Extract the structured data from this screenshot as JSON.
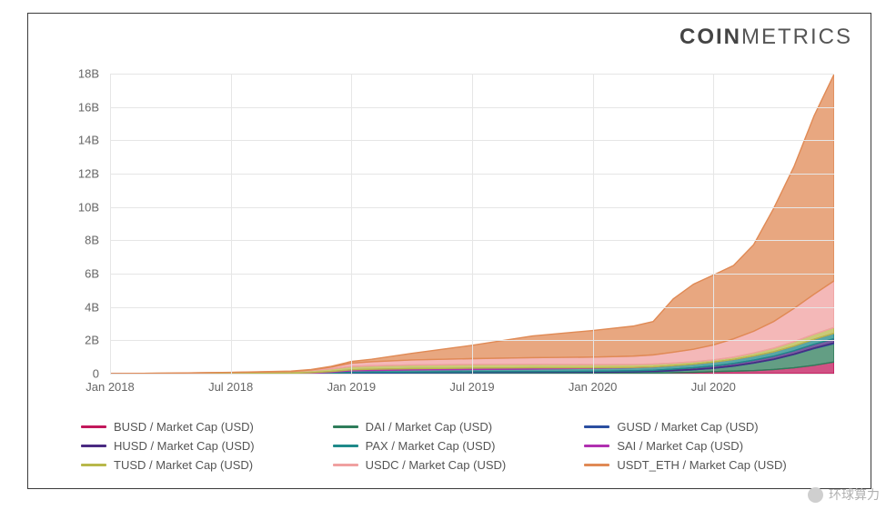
{
  "brand": {
    "bold": "COIN",
    "light": "METRICS"
  },
  "watermark": "环球算力",
  "chart": {
    "type": "area-stacked",
    "background_color": "#ffffff",
    "grid_color": "#e6e6e6",
    "axis_font_color": "#666666",
    "axis_font_size": 13,
    "ylim": [
      0,
      18
    ],
    "y_unit_suffix": "B",
    "yticks": [
      0,
      2,
      4,
      6,
      8,
      10,
      12,
      14,
      16,
      18
    ],
    "x_domain_months": [
      0,
      36
    ],
    "xticks": [
      {
        "m": 0,
        "label": "Jan 2018"
      },
      {
        "m": 6,
        "label": "Jul 2018"
      },
      {
        "m": 12,
        "label": "Jan 2019"
      },
      {
        "m": 18,
        "label": "Jul 2019"
      },
      {
        "m": 24,
        "label": "Jan 2020"
      },
      {
        "m": 30,
        "label": "Jul 2020"
      }
    ],
    "x_samples": [
      0,
      3,
      6,
      9,
      10,
      11,
      12,
      13,
      15,
      18,
      21,
      24,
      26,
      27,
      28,
      29,
      30,
      31,
      32,
      33,
      34,
      35,
      36
    ],
    "series": [
      {
        "key": "BUSD",
        "label": "BUSD / Market Cap (USD)",
        "color": "#c2185b",
        "values": [
          0,
          0,
          0,
          0,
          0,
          0,
          0,
          0,
          0,
          0,
          0,
          0,
          0.01,
          0.02,
          0.05,
          0.08,
          0.12,
          0.15,
          0.18,
          0.25,
          0.35,
          0.5,
          0.7
        ]
      },
      {
        "key": "DAI",
        "label": "DAI / Market Cap (USD)",
        "color": "#2f7d5b",
        "values": [
          0,
          0,
          0,
          0,
          0,
          0,
          0.02,
          0.03,
          0.05,
          0.06,
          0.07,
          0.08,
          0.09,
          0.1,
          0.12,
          0.15,
          0.2,
          0.3,
          0.45,
          0.6,
          0.8,
          1.0,
          1.1
        ]
      },
      {
        "key": "GUSD",
        "label": "GUSD / Market Cap (USD)",
        "color": "#2b4fa0",
        "values": [
          0,
          0,
          0,
          0,
          0.01,
          0.03,
          0.05,
          0.05,
          0.04,
          0.03,
          0.02,
          0.02,
          0.02,
          0.02,
          0.02,
          0.02,
          0.02,
          0.02,
          0.02,
          0.02,
          0.02,
          0.03,
          0.05
        ]
      },
      {
        "key": "HUSD",
        "label": "HUSD / Market Cap (USD)",
        "color": "#4a2a82",
        "values": [
          0,
          0,
          0,
          0,
          0,
          0,
          0,
          0,
          0.01,
          0.02,
          0.03,
          0.04,
          0.05,
          0.06,
          0.08,
          0.1,
          0.12,
          0.14,
          0.16,
          0.18,
          0.2,
          0.23,
          0.25
        ]
      },
      {
        "key": "PAX",
        "label": "PAX / Market Cap (USD)",
        "color": "#1f8a8a",
        "values": [
          0,
          0,
          0,
          0,
          0.01,
          0.05,
          0.1,
          0.11,
          0.12,
          0.14,
          0.16,
          0.18,
          0.19,
          0.2,
          0.21,
          0.22,
          0.23,
          0.24,
          0.25,
          0.26,
          0.28,
          0.3,
          0.32
        ]
      },
      {
        "key": "SAI",
        "label": "SAI / Market Cap (USD)",
        "color": "#b030b0",
        "values": [
          0,
          0.01,
          0.02,
          0.03,
          0.04,
          0.05,
          0.06,
          0.07,
          0.08,
          0.08,
          0.07,
          0.03,
          0.01,
          0.005,
          0.003,
          0.002,
          0.001,
          0.001,
          0.001,
          0.001,
          0.001,
          0.001,
          0.001
        ]
      },
      {
        "key": "TUSD",
        "label": "TUSD / Market Cap (USD)",
        "color": "#b8b84a",
        "values": [
          0,
          0.02,
          0.05,
          0.1,
          0.13,
          0.16,
          0.2,
          0.21,
          0.22,
          0.22,
          0.21,
          0.19,
          0.18,
          0.17,
          0.15,
          0.14,
          0.13,
          0.14,
          0.18,
          0.22,
          0.26,
          0.3,
          0.35
        ]
      },
      {
        "key": "USDC",
        "label": "USDC / Market Cap (USD)",
        "color": "#f0a0a0",
        "values": [
          0,
          0,
          0,
          0,
          0.03,
          0.1,
          0.2,
          0.24,
          0.3,
          0.35,
          0.4,
          0.45,
          0.5,
          0.55,
          0.65,
          0.75,
          0.9,
          1.1,
          1.3,
          1.6,
          2.0,
          2.4,
          2.8
        ]
      },
      {
        "key": "USDT_ETH",
        "label": "USDT_ETH / Market Cap (USD)",
        "color": "#e08a55",
        "values": [
          0,
          0,
          0.01,
          0.02,
          0.03,
          0.05,
          0.1,
          0.15,
          0.4,
          0.8,
          1.3,
          1.6,
          1.8,
          2.0,
          3.2,
          3.9,
          4.2,
          4.4,
          5.2,
          6.8,
          8.5,
          10.7,
          12.4
        ]
      }
    ],
    "legend_order": [
      "BUSD",
      "DAI",
      "GUSD",
      "HUSD",
      "PAX",
      "SAI",
      "TUSD",
      "USDC",
      "USDT_ETH"
    ],
    "legend_cols": 3,
    "area_opacity": 0.75,
    "line_width": 1.4
  }
}
